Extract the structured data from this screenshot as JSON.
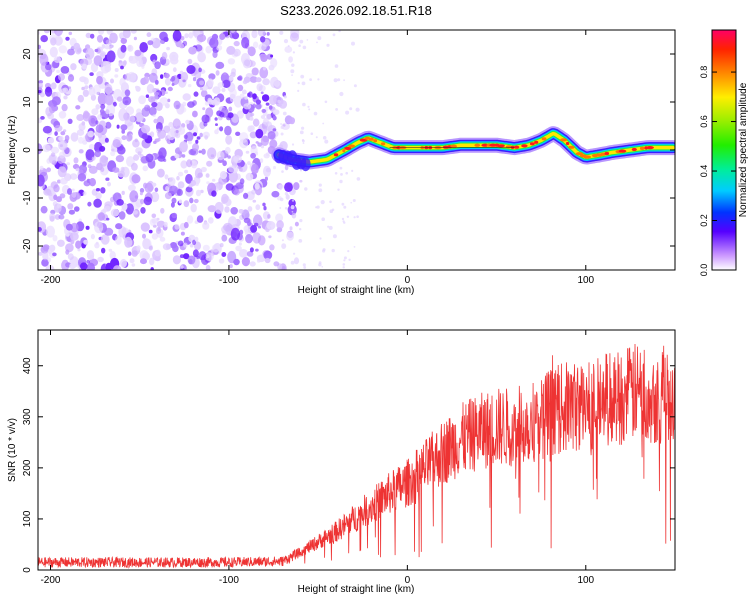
{
  "title": "S233.2026.092.18.51.R18",
  "chart_data": [
    {
      "type": "heatmap",
      "name": "spectrogram",
      "xlabel": "Height of straight line (km)",
      "ylabel": "Frequency (Hz)",
      "xlim": [
        -207,
        150
      ],
      "ylim": [
        -25,
        25
      ],
      "xticks": [
        -200,
        -100,
        0,
        100
      ],
      "yticks": [
        20,
        10,
        0,
        -10,
        -20
      ],
      "noise_region_x": [
        -207,
        -72
      ],
      "signal_trace": {
        "x": [
          -72,
          -65,
          -55,
          -45,
          -35,
          -28,
          -22,
          -15,
          -8,
          0,
          10,
          20,
          30,
          40,
          50,
          60,
          68,
          75,
          82,
          88,
          95,
          100,
          108,
          115,
          125,
          135,
          145,
          150
        ],
        "y": [
          -1,
          -2,
          -2.5,
          -2,
          0,
          1.5,
          2.5,
          1.5,
          0.5,
          0.5,
          0.5,
          0.5,
          1,
          1,
          1,
          0.5,
          1,
          2,
          3.5,
          2,
          -0.5,
          -1.5,
          -1,
          -0.5,
          0,
          0.5,
          0.5,
          0.5
        ]
      },
      "colorbar": {
        "label": "Normalized spectral amplitude",
        "ticks": [
          0.0,
          0.2,
          0.4,
          0.6,
          0.8
        ],
        "range": [
          0,
          0.97
        ]
      }
    },
    {
      "type": "line",
      "name": "snr",
      "xlabel": "Height of straight line (km)",
      "ylabel": "SNR (10 * v/v)",
      "xlim": [
        -207,
        150
      ],
      "ylim": [
        0,
        470
      ],
      "xticks": [
        -200,
        -100,
        0,
        100
      ],
      "yticks": [
        0,
        100,
        200,
        300,
        400
      ],
      "color": "#ee3333",
      "envelope": {
        "x": [
          -207,
          -150,
          -100,
          -70,
          -60,
          -50,
          -40,
          -30,
          -20,
          -10,
          0,
          10,
          20,
          30,
          40,
          50,
          60,
          70,
          80,
          90,
          100,
          110,
          120,
          130,
          140,
          150
        ],
        "y": [
          15,
          15,
          15,
          17,
          35,
          55,
          75,
          100,
          125,
          150,
          170,
          200,
          230,
          255,
          270,
          280,
          280,
          290,
          310,
          320,
          320,
          335,
          340,
          350,
          340,
          350
        ]
      }
    }
  ]
}
